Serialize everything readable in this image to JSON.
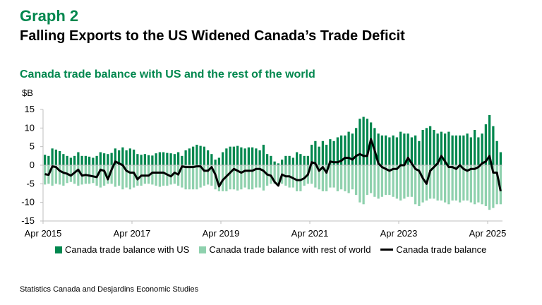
{
  "header": {
    "graph_number": "Graph 2",
    "title": "Falling Exports to the US Widened Canada’s Trade Deficit"
  },
  "source": "Statistics Canada and Desjardins Economic Studies",
  "colors": {
    "us": "#00874E",
    "row": "#8FD1AE",
    "total": "#000000",
    "title_green": "#00874E"
  },
  "chart_data": {
    "type": "bar",
    "title": "Canada trade balance with US and the rest of the world",
    "ylabel": "$B",
    "xlabel": "",
    "ylim": [
      -15,
      15
    ],
    "yticks": [
      "15",
      "10",
      "5",
      "0",
      "-5",
      "-10",
      "-15"
    ],
    "ytick_values": [
      15,
      10,
      5,
      0,
      -5,
      -10,
      -15
    ],
    "x_start": "Apr 2015",
    "x_tick_labels": [
      "Apr 2015",
      "Apr 2017",
      "Apr 2019",
      "Apr 2021",
      "Apr 2023",
      "Apr 2025"
    ],
    "x_tick_index": [
      0,
      24,
      48,
      72,
      96,
      120
    ],
    "series": [
      {
        "name": "Canada trade balance with US",
        "kind": "bar",
        "values": [
          2.8,
          2.5,
          4.5,
          4.2,
          3.8,
          3.0,
          2.5,
          2.0,
          2.5,
          3.5,
          2.5,
          2.5,
          2.3,
          2.0,
          2.5,
          3.5,
          3.2,
          3.0,
          3.3,
          4.5,
          4.0,
          4.8,
          4.0,
          4.5,
          4.2,
          3.0,
          2.8,
          3.0,
          2.7,
          2.6,
          3.2,
          3.5,
          3.5,
          3.3,
          3.2,
          3.0,
          3.5,
          2.5,
          4.0,
          4.5,
          5.0,
          5.5,
          5.2,
          5.0,
          4.0,
          3.0,
          1.5,
          2.0,
          3.5,
          4.5,
          5.0,
          5.0,
          5.2,
          4.8,
          4.5,
          4.8,
          4.8,
          4.5,
          4.0,
          5.5,
          3.0,
          2.5,
          1.0,
          0.5,
          1.5,
          2.5,
          2.5,
          2.0,
          3.5,
          3.0,
          2.5,
          2.5,
          5.5,
          6.5,
          5.0,
          6.5,
          5.5,
          7.0,
          6.5,
          7.5,
          8.0,
          8.0,
          9.0,
          8.5,
          10.0,
          12.5,
          13.0,
          12.5,
          11.5,
          10.0,
          8.5,
          8.0,
          8.0,
          7.5,
          8.0,
          7.5,
          9.0,
          8.5,
          8.5,
          7.5,
          8.0,
          6.5,
          9.5,
          10.0,
          10.5,
          9.5,
          8.5,
          9.0,
          8.5,
          9.0,
          8.0,
          8.0,
          8.0,
          8.0,
          8.5,
          7.5,
          9.5,
          7.5,
          8.5,
          11.0,
          13.5,
          10.5,
          6.5,
          3.5
        ]
      },
      {
        "name": "Canada trade balance with rest of world",
        "kind": "bar",
        "values": [
          -5.2,
          -5.0,
          -5.5,
          -5.0,
          -5.2,
          -5.5,
          -4.8,
          -4.5,
          -5.0,
          -5.5,
          -5.2,
          -5.0,
          -5.0,
          -4.8,
          -5.5,
          -6.0,
          -5.5,
          -5.0,
          -5.0,
          -5.8,
          -5.5,
          -6.5,
          -6.0,
          -6.5,
          -6.0,
          -5.5,
          -5.5,
          -5.0,
          -5.0,
          -5.2,
          -5.5,
          -5.8,
          -5.5,
          -5.5,
          -5.2,
          -5.0,
          -5.5,
          -6.0,
          -6.5,
          -6.5,
          -6.5,
          -6.5,
          -6.0,
          -5.5,
          -5.2,
          -5.5,
          -6.5,
          -7.0,
          -7.0,
          -7.0,
          -6.5,
          -6.5,
          -6.8,
          -6.5,
          -6.0,
          -6.5,
          -6.5,
          -6.0,
          -6.0,
          -6.8,
          -5.5,
          -5.0,
          -5.0,
          -5.5,
          -5.0,
          -5.5,
          -6.0,
          -6.0,
          -7.0,
          -7.0,
          -5.5,
          -5.0,
          -5.0,
          -6.0,
          -6.5,
          -7.0,
          -7.0,
          -6.0,
          -6.0,
          -7.0,
          -6.5,
          -7.0,
          -7.5,
          -6.5,
          -8.0,
          -10.0,
          -10.5,
          -8.0,
          -7.5,
          -8.5,
          -9.0,
          -8.5,
          -8.0,
          -8.0,
          -8.5,
          -9.0,
          -9.5,
          -9.0,
          -8.5,
          -8.5,
          -10.5,
          -11.0,
          -10.0,
          -9.5,
          -9.0,
          -9.0,
          -9.5,
          -9.5,
          -10.0,
          -10.5,
          -9.5,
          -9.5,
          -10.0,
          -9.5,
          -9.5,
          -10.0,
          -10.5,
          -10.0,
          -10.5,
          -11.0,
          -12.0,
          -11.5,
          -10.5,
          -10.5
        ]
      },
      {
        "name": "Canada trade balance",
        "kind": "line",
        "values": [
          -2.4,
          -2.6,
          -0.3,
          -0.5,
          -1.5,
          -2.0,
          -2.3,
          -2.8,
          -2.0,
          -1.2,
          -2.8,
          -2.6,
          -2.8,
          -3.0,
          -3.2,
          -1.2,
          -1.5,
          -3.8,
          -1.2,
          1.0,
          0.5,
          0.0,
          -1.5,
          -2.0,
          -2.0,
          -3.8,
          -2.8,
          -2.8,
          -2.8,
          -2.0,
          -2.0,
          -2.0,
          -2.0,
          -2.5,
          -3.0,
          -2.0,
          -2.5,
          -0.3,
          -0.5,
          -0.5,
          -0.5,
          -0.3,
          -0.3,
          -1.5,
          -1.5,
          -0.5,
          -2.5,
          -5.7,
          -4.0,
          -3.0,
          -2.0,
          -1.0,
          -1.5,
          -2.0,
          -1.5,
          -1.5,
          -1.5,
          -1.0,
          -1.0,
          -1.5,
          -2.5,
          -2.8,
          -4.5,
          -5.5,
          -2.5,
          -3.0,
          -3.0,
          -3.5,
          -4.0,
          -4.0,
          -3.5,
          -2.5,
          0.8,
          0.5,
          -1.5,
          -0.5,
          -2.0,
          1.0,
          0.8,
          0.8,
          1.2,
          2.0,
          2.0,
          1.5,
          2.5,
          3.0,
          2.5,
          2.5,
          7.0,
          4.0,
          0.5,
          -0.5,
          -1.0,
          -1.5,
          -1.0,
          -1.0,
          0.0,
          0.0,
          2.0,
          0.5,
          -1.0,
          -1.5,
          -3.5,
          -5.0,
          -1.5,
          -0.5,
          0.5,
          2.5,
          1.0,
          -0.5,
          -0.5,
          -1.0,
          0.0,
          -1.0,
          -1.5,
          -1.0,
          -1.0,
          -0.5,
          0.5,
          1.0,
          2.5,
          -2.0,
          -2.0,
          -7.0
        ]
      }
    ],
    "legend": [
      "Canada trade balance with US",
      "Canada trade balance with rest of world",
      "Canada trade balance"
    ],
    "legend_position": "bottom",
    "grid": false
  }
}
